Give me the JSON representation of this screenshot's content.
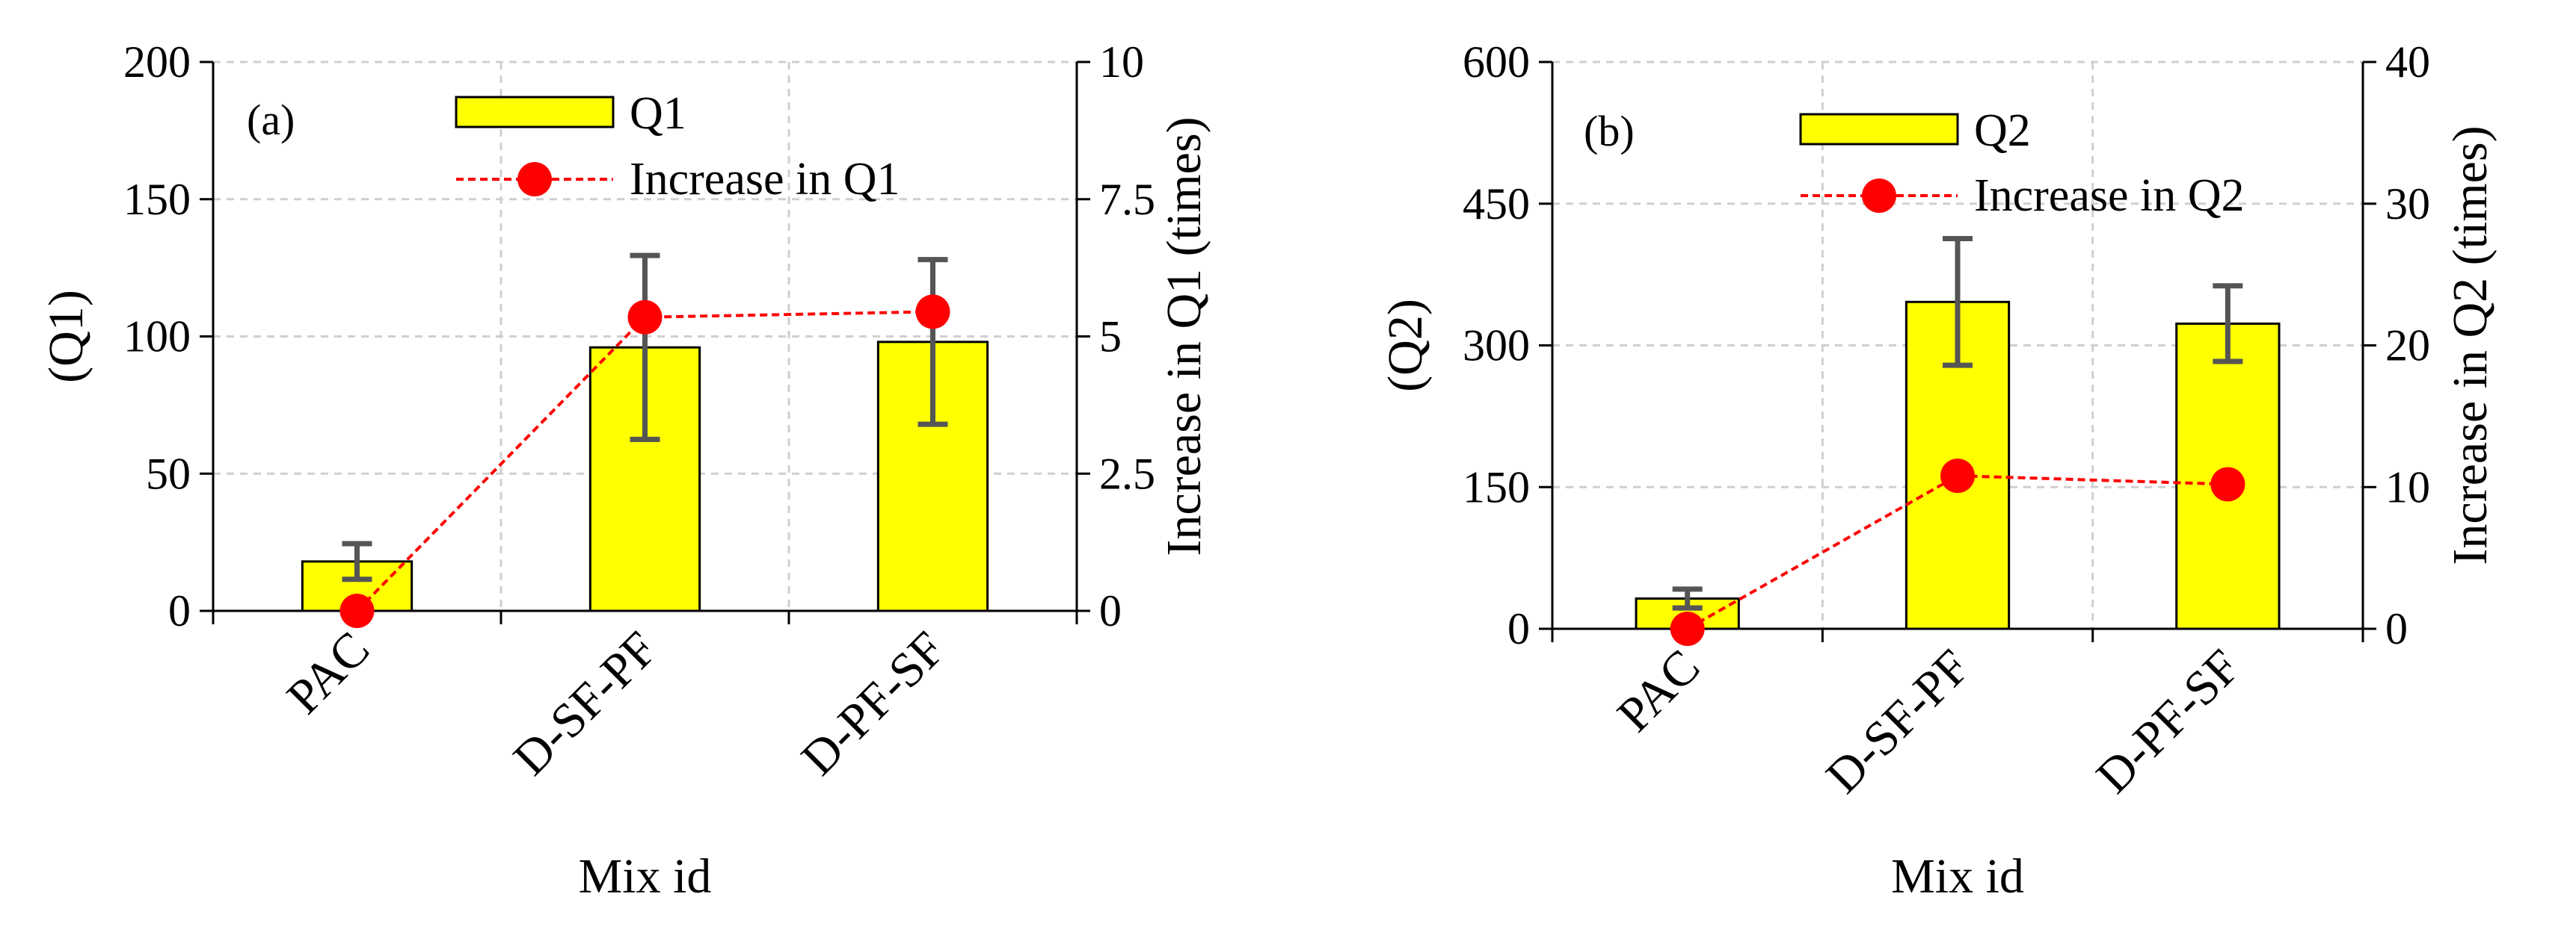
{
  "chart_data": [
    {
      "type": "bar",
      "panel_label": "(a)",
      "categories": [
        "PAC",
        "D-SF-PF",
        "D-PF-SF"
      ],
      "series": [
        {
          "name": "Q1",
          "kind": "bar",
          "axis": "left",
          "values": [
            18,
            96,
            98
          ],
          "error": [
            6.5,
            33.5,
            30
          ],
          "color": "#ffff00"
        },
        {
          "name": "Increase in Q1",
          "kind": "line",
          "axis": "right",
          "values": [
            0,
            5.35,
            5.45
          ],
          "color": "#ff0000"
        }
      ],
      "xlabel": "Mix id",
      "ylabel": "(Q1)",
      "y2label": "Increase in Q1 (times)",
      "ylim": [
        0,
        200
      ],
      "yticks": [
        "0",
        "50",
        "100",
        "150",
        "200"
      ],
      "y2lim": [
        0,
        10
      ],
      "y2ticks": [
        "0",
        "2.5",
        "5",
        "7.5",
        "10"
      ],
      "grid": true,
      "legend": "top"
    },
    {
      "type": "bar",
      "panel_label": "(b)",
      "categories": [
        "PAC",
        "D-SF-PF",
        "D-PF-SF"
      ],
      "series": [
        {
          "name": "Q2",
          "kind": "bar",
          "axis": "left",
          "values": [
            32,
            346,
            323
          ],
          "error": [
            10,
            67,
            40
          ],
          "color": "#ffff00"
        },
        {
          "name": "Increase in Q2",
          "kind": "line",
          "axis": "right",
          "values": [
            0,
            10.8,
            10.2
          ],
          "color": "#ff0000"
        }
      ],
      "xlabel": "Mix id",
      "ylabel": "(Q2)",
      "y2label": "Increase in Q2 (times)",
      "ylim": [
        0,
        600
      ],
      "yticks": [
        "0",
        "150",
        "300",
        "450",
        "600"
      ],
      "y2lim": [
        0,
        40
      ],
      "y2ticks": [
        "0",
        "10",
        "20",
        "30",
        "40"
      ],
      "grid": true,
      "legend": "top"
    }
  ]
}
